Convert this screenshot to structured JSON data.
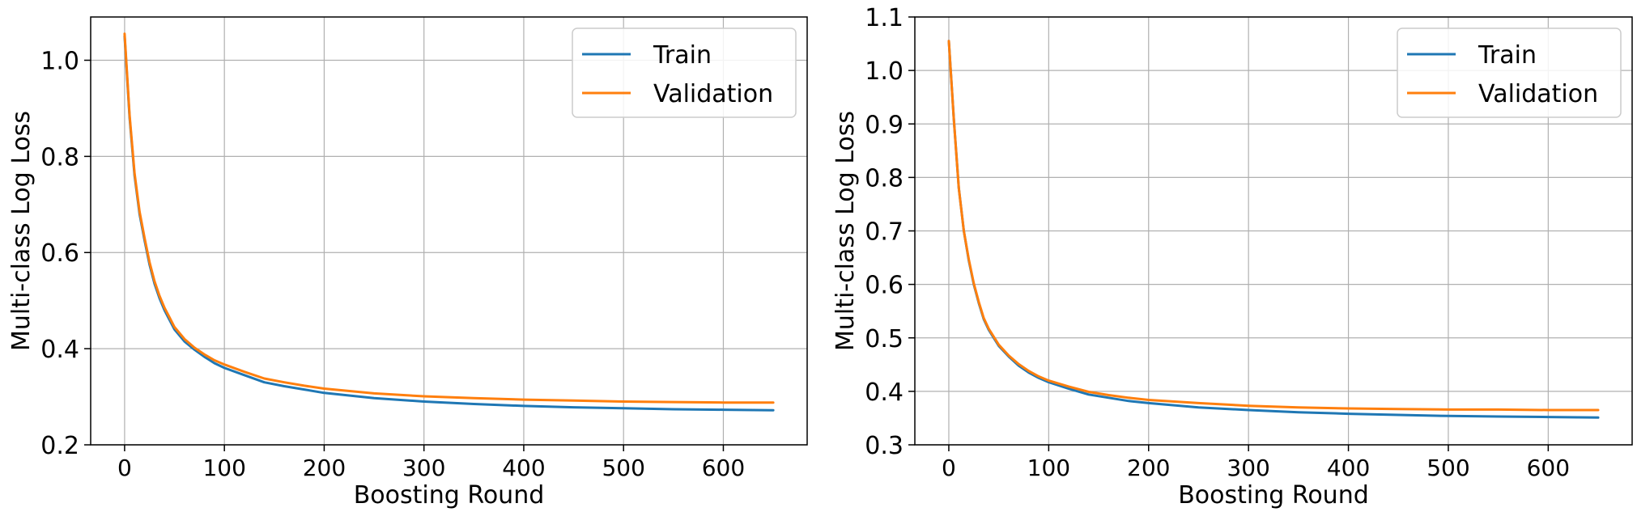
{
  "colors": {
    "train": "#1f77b4",
    "validation": "#ff7f0e",
    "grid": "#b0b0b0",
    "axes": "#000000"
  },
  "chart_data": [
    {
      "type": "line",
      "title": "",
      "xlabel": "Boosting Round",
      "ylabel": "Multi-class Log Loss",
      "xlim": [
        -34,
        684
      ],
      "ylim": [
        0.2,
        1.09
      ],
      "xticks": [
        0,
        100,
        200,
        300,
        400,
        500,
        600
      ],
      "xtick_labels": [
        "0",
        "100",
        "200",
        "300",
        "400",
        "500",
        "600"
      ],
      "yticks": [
        0.2,
        0.4,
        0.6,
        0.8,
        1.0
      ],
      "ytick_labels": [
        "0.2",
        "0.4",
        "0.6",
        "0.8",
        "1.0"
      ],
      "grid": true,
      "legend_position": "top-right",
      "series": [
        {
          "name": "Train",
          "color_key": "train",
          "x": [
            0,
            5,
            10,
            15,
            20,
            25,
            30,
            35,
            40,
            45,
            50,
            60,
            70,
            80,
            90,
            100,
            120,
            140,
            160,
            180,
            200,
            250,
            300,
            350,
            400,
            450,
            500,
            550,
            600,
            650
          ],
          "y": [
            1.05,
            0.88,
            0.76,
            0.68,
            0.625,
            0.575,
            0.535,
            0.505,
            0.48,
            0.46,
            0.44,
            0.415,
            0.398,
            0.383,
            0.37,
            0.36,
            0.345,
            0.33,
            0.322,
            0.315,
            0.308,
            0.297,
            0.29,
            0.285,
            0.281,
            0.278,
            0.276,
            0.274,
            0.273,
            0.272
          ]
        },
        {
          "name": "Validation",
          "color_key": "validation",
          "x": [
            0,
            5,
            10,
            15,
            20,
            25,
            30,
            35,
            40,
            45,
            50,
            60,
            70,
            80,
            90,
            100,
            120,
            140,
            160,
            180,
            200,
            250,
            300,
            350,
            400,
            450,
            500,
            550,
            600,
            650
          ],
          "y": [
            1.055,
            0.885,
            0.765,
            0.685,
            0.63,
            0.58,
            0.54,
            0.51,
            0.485,
            0.465,
            0.445,
            0.42,
            0.402,
            0.388,
            0.376,
            0.367,
            0.352,
            0.338,
            0.33,
            0.323,
            0.317,
            0.307,
            0.301,
            0.297,
            0.294,
            0.292,
            0.29,
            0.289,
            0.288,
            0.288
          ]
        }
      ]
    },
    {
      "type": "line",
      "title": "",
      "xlabel": "Boosting Round",
      "ylabel": "Multi-class Log Loss",
      "xlim": [
        -34,
        684
      ],
      "ylim": [
        0.3,
        1.1
      ],
      "xticks": [
        0,
        100,
        200,
        300,
        400,
        500,
        600
      ],
      "xtick_labels": [
        "0",
        "100",
        "200",
        "300",
        "400",
        "500",
        "600"
      ],
      "yticks": [
        0.3,
        0.4,
        0.5,
        0.6,
        0.7,
        0.8,
        0.9,
        1.0,
        1.1
      ],
      "ytick_labels": [
        "0.3",
        "0.4",
        "0.5",
        "0.6",
        "0.7",
        "0.8",
        "0.9",
        "1.0",
        "1.1"
      ],
      "grid": true,
      "legend_position": "top-right",
      "series": [
        {
          "name": "Train",
          "color_key": "train",
          "x": [
            0,
            5,
            10,
            15,
            20,
            25,
            30,
            35,
            40,
            45,
            50,
            60,
            70,
            80,
            90,
            100,
            120,
            140,
            160,
            180,
            200,
            250,
            300,
            350,
            400,
            450,
            500,
            550,
            600,
            650
          ],
          "y": [
            1.055,
            0.91,
            0.78,
            0.7,
            0.645,
            0.6,
            0.565,
            0.535,
            0.515,
            0.5,
            0.485,
            0.465,
            0.448,
            0.435,
            0.425,
            0.417,
            0.405,
            0.394,
            0.388,
            0.382,
            0.378,
            0.37,
            0.365,
            0.361,
            0.358,
            0.356,
            0.354,
            0.353,
            0.352,
            0.351
          ]
        },
        {
          "name": "Validation",
          "color_key": "validation",
          "x": [
            0,
            5,
            10,
            15,
            20,
            25,
            30,
            35,
            40,
            45,
            50,
            60,
            70,
            80,
            90,
            100,
            120,
            140,
            160,
            180,
            200,
            250,
            300,
            350,
            400,
            450,
            500,
            550,
            600,
            650
          ],
          "y": [
            1.055,
            0.91,
            0.78,
            0.7,
            0.647,
            0.602,
            0.567,
            0.537,
            0.517,
            0.502,
            0.487,
            0.467,
            0.451,
            0.438,
            0.428,
            0.42,
            0.409,
            0.399,
            0.393,
            0.388,
            0.384,
            0.378,
            0.373,
            0.37,
            0.368,
            0.367,
            0.366,
            0.366,
            0.365,
            0.365
          ]
        }
      ]
    }
  ]
}
